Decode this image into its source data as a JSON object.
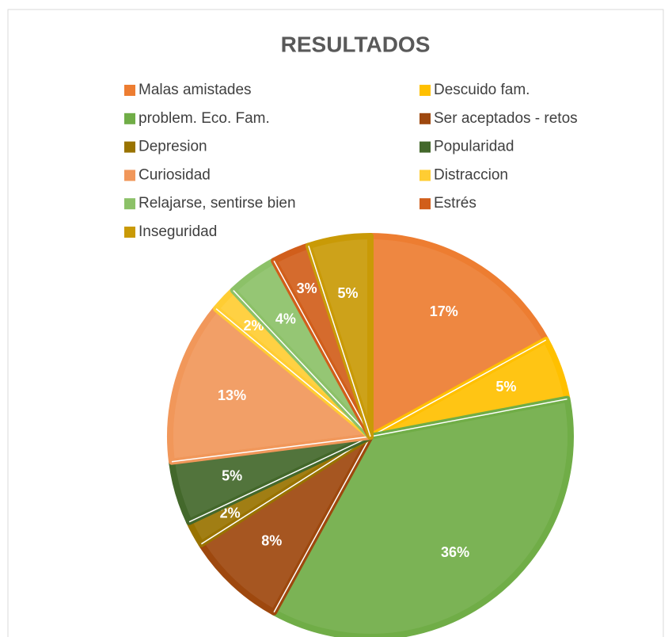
{
  "chart_data": {
    "type": "pie",
    "title": "RESULTADOS",
    "categories": [
      "Malas amistades",
      "Descuido fam.",
      "problem. Eco. Fam.",
      "Ser aceptados - retos",
      "Depresion",
      "Popularidad",
      "Curiosidad",
      "Distraccion",
      "Relajarse, sentirse bien",
      "Estrés",
      "Inseguridad"
    ],
    "values": [
      17,
      5,
      36,
      8,
      2,
      5,
      13,
      2,
      4,
      3,
      5
    ],
    "value_labels": [
      "17%",
      "5%",
      "36%",
      "8%",
      "2%",
      "5%",
      "13%",
      "2%",
      "4%",
      "3%",
      "5%"
    ],
    "colors": [
      "#ED7D31",
      "#FFC000",
      "#70AD47",
      "#9E480E",
      "#997300",
      "#43682B",
      "#F1975A",
      "#FFCD33",
      "#8CC168",
      "#D15E1B",
      "#C99A06"
    ],
    "legend": "top"
  }
}
